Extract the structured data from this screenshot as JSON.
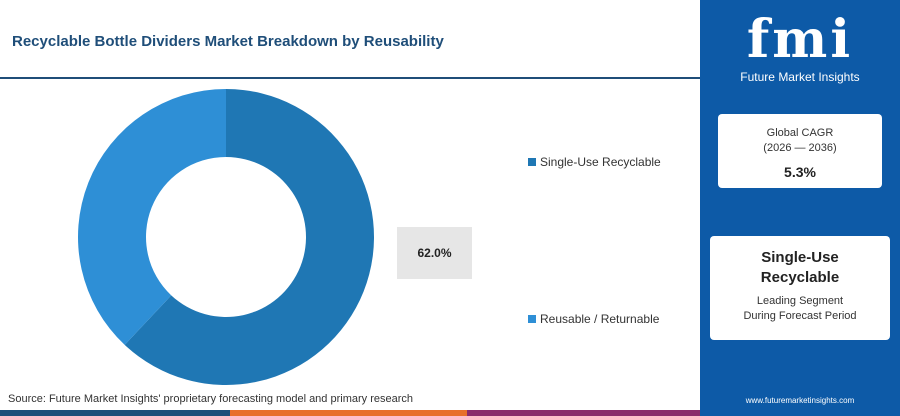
{
  "title": "Recyclable Bottle Dividers Market Breakdown by Reusability",
  "source": "Source: Future Market Insights' proprietary forecasting model and primary research",
  "callout_label": "62.0%",
  "colors": {
    "primary": "#1f77b4",
    "secondary": "#2e8fd6",
    "panel": "#0d5aa7",
    "bar1": "#1f4e79",
    "bar2": "#e8702a",
    "bar3": "#8b2c6b"
  },
  "chart_data": {
    "type": "pie",
    "donut": true,
    "categories": [
      "Single-Use Recyclable",
      "Reusable / Returnable"
    ],
    "values": [
      62.0,
      38.0
    ],
    "colors": [
      "#1f77b4",
      "#2e8fd6"
    ],
    "data_labels": [
      "62.0%"
    ]
  },
  "legend": [
    {
      "label": "Single-Use Recyclable",
      "color": "#1f77b4"
    },
    {
      "label": "Reusable / Returnable",
      "color": "#2e8fd6"
    }
  ],
  "sidebar": {
    "logo_text": "fmi",
    "logo_sub": "Future Market Insights",
    "cagr_label_1": "Global CAGR",
    "cagr_label_2": "(2026 — 2036)",
    "cagr_value": "5.3%",
    "segment_name_1": "Single-Use",
    "segment_name_2": "Recyclable",
    "segment_desc_1": "Leading Segment",
    "segment_desc_2": "During Forecast Period",
    "website": "www.futuremarketinsights.com"
  }
}
